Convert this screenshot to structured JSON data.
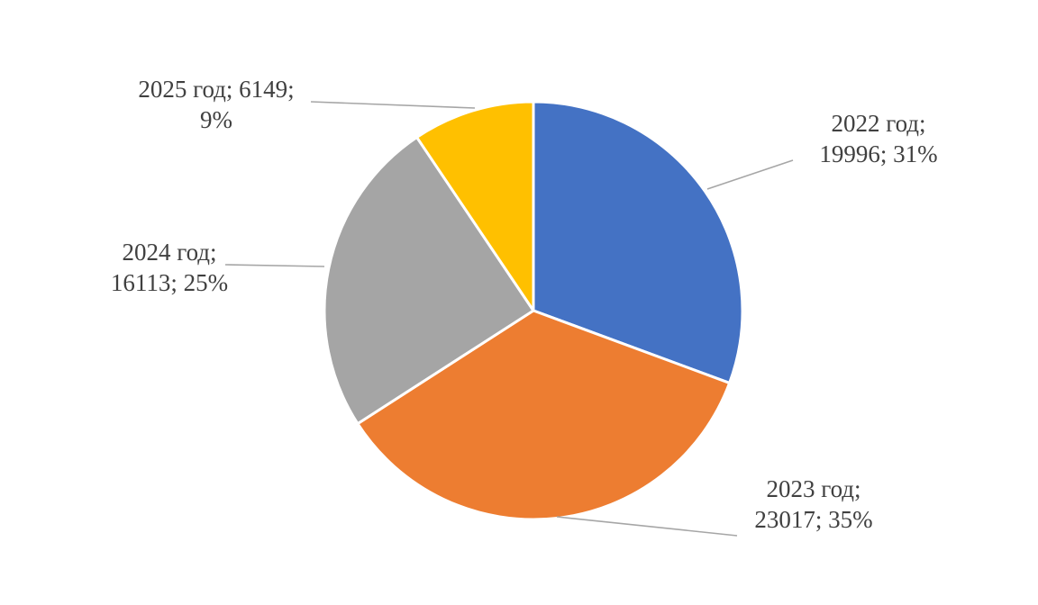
{
  "chart_data": {
    "type": "pie",
    "title": "",
    "categories": [
      "2022 год",
      "2023 год",
      "2024 год",
      "2025 год"
    ],
    "values": [
      19996,
      23017,
      16113,
      6149
    ],
    "percents": [
      "31%",
      "35%",
      "25%",
      "9%"
    ],
    "colors": [
      "#4472c4",
      "#ed7d31",
      "#a5a5a5",
      "#ffc000"
    ],
    "start_angle_deg": 0,
    "direction": "clockwise",
    "legend": "none",
    "labels": [
      {
        "lines": [
          "2022 год;",
          "19996; 31%"
        ]
      },
      {
        "lines": [
          "2023 год;",
          "23017; 35%"
        ]
      },
      {
        "lines": [
          "2024 год;",
          "16113; 25%"
        ]
      },
      {
        "lines": [
          "2025 год; 6149;",
          "9%"
        ]
      }
    ]
  }
}
